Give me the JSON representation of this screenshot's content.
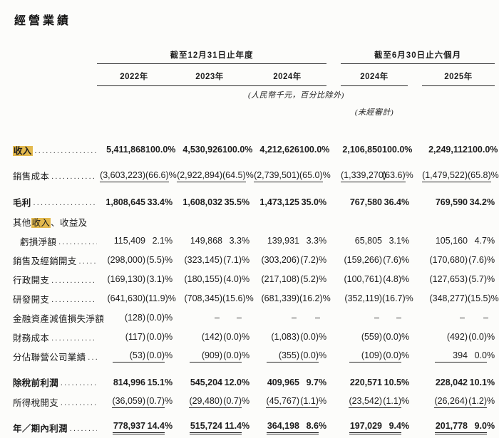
{
  "title": "經營業績",
  "table": {
    "groups": [
      {
        "label": "截至12月31日止年度",
        "columns": [
          "2022年",
          "2023年",
          "2024年"
        ]
      },
      {
        "label": "截至6月30日止六個月",
        "columns": [
          "2024年",
          "2025年"
        ]
      }
    ],
    "currency_note": "(人民幣千元，百分比除外)",
    "unaudited_note": "(未經審計)",
    "highlight_color": "#e3b94e",
    "rows": [
      {
        "name": "revenue",
        "bold": true,
        "dots": true,
        "label": [
          {
            "t": "收入",
            "h": true
          }
        ],
        "cells": [
          [
            "5,411,868",
            "100.0%"
          ],
          [
            "4,530,926",
            "100.0%"
          ],
          [
            "4,212,626",
            "100.0%"
          ],
          [
            "2,106,850",
            "100.0%"
          ],
          [
            "2,249,112",
            "100.0%"
          ]
        ]
      },
      {
        "name": "cost-of-sales",
        "dots": true,
        "underline": "single",
        "space_before": true,
        "label": [
          {
            "t": "銷售成本"
          }
        ],
        "cells": [
          [
            "(3,603,223)",
            "(66.6)%"
          ],
          [
            "(2,922,894)",
            "(64.5)%"
          ],
          [
            "(2,739,501)",
            "(65.0)%"
          ],
          [
            "(1,339,270)",
            "(63.6)%"
          ],
          [
            "(1,479,522)",
            "(65.8)%"
          ]
        ]
      },
      {
        "name": "gross-profit",
        "bold": true,
        "dots": true,
        "space_before": true,
        "label": [
          {
            "t": "毛利"
          }
        ],
        "cells": [
          [
            "1,808,645",
            "33.4%"
          ],
          [
            "1,608,032",
            "35.5%"
          ],
          [
            "1,473,125",
            "35.0%"
          ],
          [
            "767,580",
            "36.4%"
          ],
          [
            "769,590",
            "34.2%"
          ]
        ]
      },
      {
        "name": "other-income-caption",
        "label": [
          {
            "t": "其他"
          },
          {
            "t": "收入",
            "h": true
          },
          {
            "t": "、收益及"
          }
        ],
        "cells": null
      },
      {
        "name": "other-income-net",
        "dots": true,
        "indent": true,
        "label": [
          {
            "t": "虧損淨額"
          }
        ],
        "cells": [
          [
            "115,409",
            "2.1%"
          ],
          [
            "149,868",
            "3.3%"
          ],
          [
            "139,931",
            "3.3%"
          ],
          [
            "65,805",
            "3.1%"
          ],
          [
            "105,160",
            "4.7%"
          ]
        ]
      },
      {
        "name": "selling-distribution-expenses",
        "dots": true,
        "label": [
          {
            "t": "銷售及經銷開支"
          }
        ],
        "cells": [
          [
            "(298,000)",
            "(5.5)%"
          ],
          [
            "(323,145)",
            "(7.1)%"
          ],
          [
            "(303,206)",
            "(7.2)%"
          ],
          [
            "(159,266)",
            "(7.6)%"
          ],
          [
            "(170,680)",
            "(7.6)%"
          ]
        ]
      },
      {
        "name": "administrative-expenses",
        "dots": true,
        "label": [
          {
            "t": "行政開支"
          }
        ],
        "cells": [
          [
            "(169,130)",
            "(3.1)%"
          ],
          [
            "(180,155)",
            "(4.0)%"
          ],
          [
            "(217,108)",
            "(5.2)%"
          ],
          [
            "(100,761)",
            "(4.8)%"
          ],
          [
            "(127,653)",
            "(5.7)%"
          ]
        ]
      },
      {
        "name": "rd-expenses",
        "dots": true,
        "label": [
          {
            "t": "研發開支"
          }
        ],
        "cells": [
          [
            "(641,630)",
            "(11.9)%"
          ],
          [
            "(708,345)",
            "(15.6)%"
          ],
          [
            "(681,339)",
            "(16.2)%"
          ],
          [
            "(352,119)",
            "(16.7)%"
          ],
          [
            "(348,277)",
            "(15.5)%"
          ]
        ]
      },
      {
        "name": "impairment-loss-financial-assets",
        "label": [
          {
            "t": "金融資產減值損失淨額"
          }
        ],
        "cells": [
          [
            "(128)",
            "(0.0)%"
          ],
          [
            "–",
            "–"
          ],
          [
            "–",
            "–"
          ],
          [
            "–",
            "–"
          ],
          [
            "–",
            "–"
          ]
        ]
      },
      {
        "name": "finance-costs",
        "dots": true,
        "label": [
          {
            "t": "財務成本"
          }
        ],
        "cells": [
          [
            "(117)",
            "(0.0)%"
          ],
          [
            "(142)",
            "(0.0)%"
          ],
          [
            "(1,083)",
            "(0.0)%"
          ],
          [
            "(559)",
            "(0.0)%"
          ],
          [
            "(492)",
            "(0.0)%"
          ]
        ]
      },
      {
        "name": "share-of-associates",
        "dots": true,
        "underline": "single",
        "label": [
          {
            "t": "分佔聯營公司業績"
          }
        ],
        "cells": [
          [
            "(53)",
            "(0.0)%"
          ],
          [
            "(909)",
            "(0.0)%"
          ],
          [
            "(355)",
            "(0.0)%"
          ],
          [
            "(109)",
            "(0.0)%"
          ],
          [
            "394",
            "0.0%"
          ]
        ]
      },
      {
        "name": "profit-before-tax",
        "bold": true,
        "dots": true,
        "space_before": true,
        "label": [
          {
            "t": "除稅前利潤"
          }
        ],
        "cells": [
          [
            "814,996",
            "15.1%"
          ],
          [
            "545,204",
            "12.0%"
          ],
          [
            "409,965",
            "9.7%"
          ],
          [
            "220,571",
            "10.5%"
          ],
          [
            "228,042",
            "10.1%"
          ]
        ]
      },
      {
        "name": "income-tax-expense",
        "dots": true,
        "underline": "single",
        "label": [
          {
            "t": "所得稅開支"
          }
        ],
        "cells": [
          [
            "(36,059)",
            "(0.7)%"
          ],
          [
            "(29,480)",
            "(0.7)%"
          ],
          [
            "(45,767)",
            "(1.1)%"
          ],
          [
            "(23,542)",
            "(1.1)%"
          ],
          [
            "(26,264)",
            "(1.2)%"
          ]
        ]
      },
      {
        "name": "profit-for-period",
        "bold": true,
        "dots": true,
        "underline": "double",
        "space_before": true,
        "label": [
          {
            "t": "年／期內利潤"
          }
        ],
        "cells": [
          [
            "778,937",
            "14.4%"
          ],
          [
            "515,724",
            "11.4%"
          ],
          [
            "364,198",
            "8.6%"
          ],
          [
            "197,029",
            "9.4%"
          ],
          [
            "201,778",
            "9.0%"
          ]
        ]
      }
    ]
  }
}
